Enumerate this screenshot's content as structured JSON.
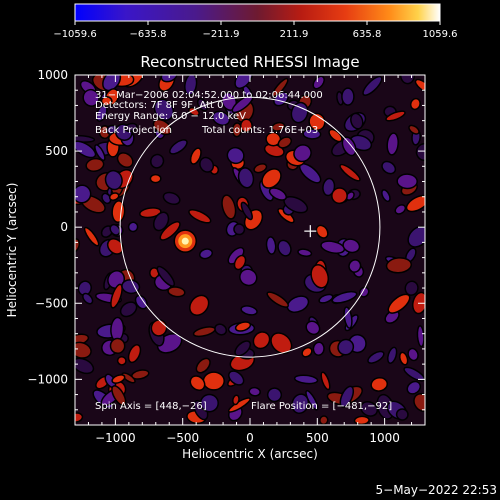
{
  "chart_data": {
    "type": "heatmap",
    "title": "Reconstructed RHESSI Image",
    "xlabel": "Heliocentric X (arcsec)",
    "ylabel": "Heliocentric Y (arcsec)",
    "xlim": [
      -1300,
      1300
    ],
    "ylim": [
      -1300,
      1000
    ],
    "x_ticks": [
      -1000,
      -500,
      0,
      500,
      1000
    ],
    "y_ticks": [
      -1000,
      -500,
      0,
      500,
      1000
    ],
    "x_tick_labels": [
      "−1000",
      "−500",
      "0",
      "500",
      "1000"
    ],
    "y_tick_labels": [
      "−1000",
      "−500",
      "0",
      "500",
      "1000"
    ],
    "colorbar": {
      "min": -1059.6,
      "max": 1059.6,
      "tick_labels": [
        "−1059.6",
        "−635.8",
        "−211.9",
        "211.9",
        "635.8",
        "1059.6"
      ],
      "tick_values": [
        -1059.6,
        -635.8,
        -211.9,
        211.9,
        635.8,
        1059.6
      ],
      "colors": [
        "#0000ff",
        "#3a16c8",
        "#4a1a8c",
        "#7a1a2a",
        "#b81c12",
        "#e63c12",
        "#ff8a18",
        "#ffd24a",
        "#ffffff"
      ]
    },
    "annotations": {
      "line1": "31−Mar−2006 02:04:52.000 to 02:06:44.000",
      "line2": "Detectors: 7F 8F 9F, Att 0",
      "line3": "Energy Range: 6.0 − 12.0 keV",
      "line4a": "Back Projection",
      "line4b": "Total counts: 1.76E+03",
      "spin_axis": "Spin Axis = [448,−26]",
      "flare_position": "Flare Position = [−481,−92]"
    },
    "solar_disk": {
      "center": [
        0,
        0
      ],
      "radius_arcsec": 965
    },
    "cross_marker": [
      448,
      -26
    ],
    "bright_source": {
      "center": [
        -481,
        -92
      ],
      "peak": 1059.6
    }
  },
  "footer": {
    "date": "5−May−2022 22:53"
  }
}
